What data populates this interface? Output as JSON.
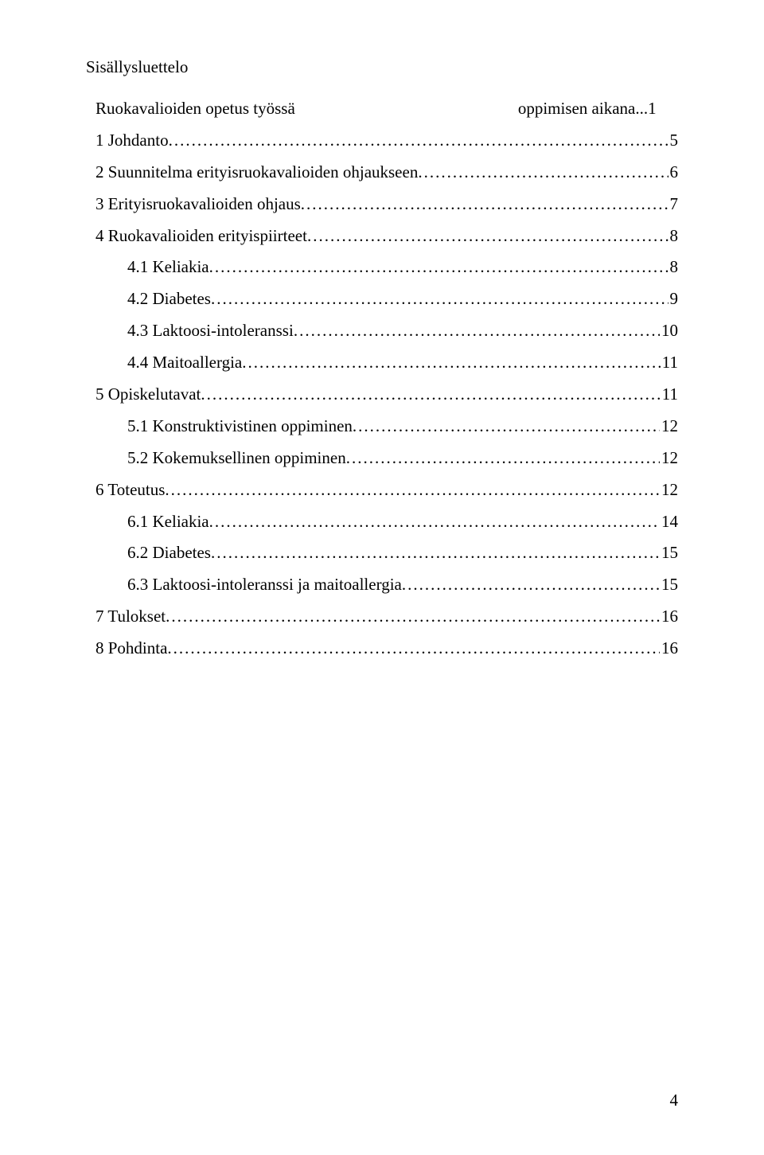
{
  "title": "Sisällysluettelo",
  "toc": [
    {
      "indent": 0,
      "label": "Ruokavalioiden opetus työssä",
      "rightText": "oppimisen aikana...1",
      "page": "",
      "dotted": false
    },
    {
      "indent": 0,
      "label": "1 Johdanto",
      "page": "5",
      "dotted": true
    },
    {
      "indent": 0,
      "label": "2 Suunnitelma erityisruokavalioiden ohjaukseen",
      "page": "6",
      "dotted": true
    },
    {
      "indent": 0,
      "label": "3 Erityisruokavalioiden  ohjaus",
      "page": "7",
      "dotted": true
    },
    {
      "indent": 0,
      "label": "4 Ruokavalioiden erityispiirteet",
      "page": "8",
      "dotted": true
    },
    {
      "indent": 1,
      "label": "4.1 Keliakia",
      "page": "8",
      "dotted": true
    },
    {
      "indent": 1,
      "label": "4.2 Diabetes",
      "page": "9",
      "dotted": true
    },
    {
      "indent": 1,
      "label": "4.3 Laktoosi-intoleranssi",
      "page": "10",
      "dotted": true
    },
    {
      "indent": 1,
      "label": "4.4 Maitoallergia",
      "page": "11",
      "dotted": true
    },
    {
      "indent": 0,
      "label": "5 Opiskelutavat",
      "page": "11",
      "dotted": true
    },
    {
      "indent": 1,
      "label": "5.1 Konstruktivistinen oppiminen",
      "page": "12",
      "dotted": true
    },
    {
      "indent": 1,
      "label": "5.2 Kokemuksellinen oppiminen",
      "page": "12",
      "dotted": true
    },
    {
      "indent": 0,
      "label": "6 Toteutus",
      "page": "12",
      "dotted": true
    },
    {
      "indent": 1,
      "label": "6.1 Keliakia",
      "page": "14",
      "dotted": true
    },
    {
      "indent": 1,
      "label": "6.2 Diabetes",
      "page": "15",
      "dotted": true
    },
    {
      "indent": 1,
      "label": "6.3 Laktoosi-intoleranssi ja maitoallergia",
      "page": "15",
      "dotted": true
    },
    {
      "indent": 0,
      "label": "7 Tulokset",
      "page": "16",
      "dotted": true
    },
    {
      "indent": 0,
      "label": "8 Pohdinta",
      "page": "16",
      "dotted": true
    }
  ],
  "pageNumber": "4",
  "colors": {
    "text": "#000000",
    "background": "#ffffff"
  },
  "typography": {
    "fontFamily": "Times New Roman",
    "baseFontSizePt": 12
  }
}
